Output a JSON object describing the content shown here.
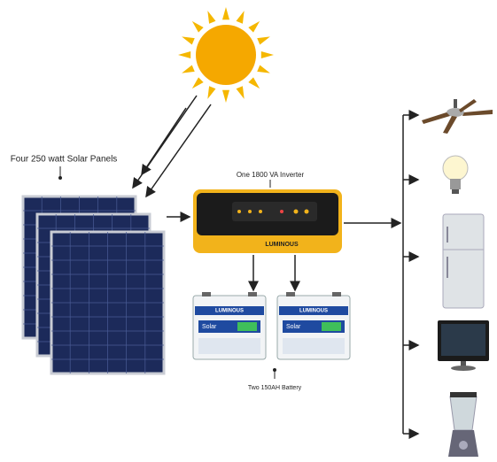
{
  "labels": {
    "panels": "Four 250 watt Solar Panels",
    "inverter": "One 1800 VA Inverter",
    "battery": "Two 150AH Battery"
  },
  "inverter": {
    "brand": "LUMINOUS"
  },
  "batteries": [
    {
      "brand": "LUMINOUS",
      "logo": "Solar"
    },
    {
      "brand": "LUMINOUS",
      "logo": "Solar"
    }
  ]
}
